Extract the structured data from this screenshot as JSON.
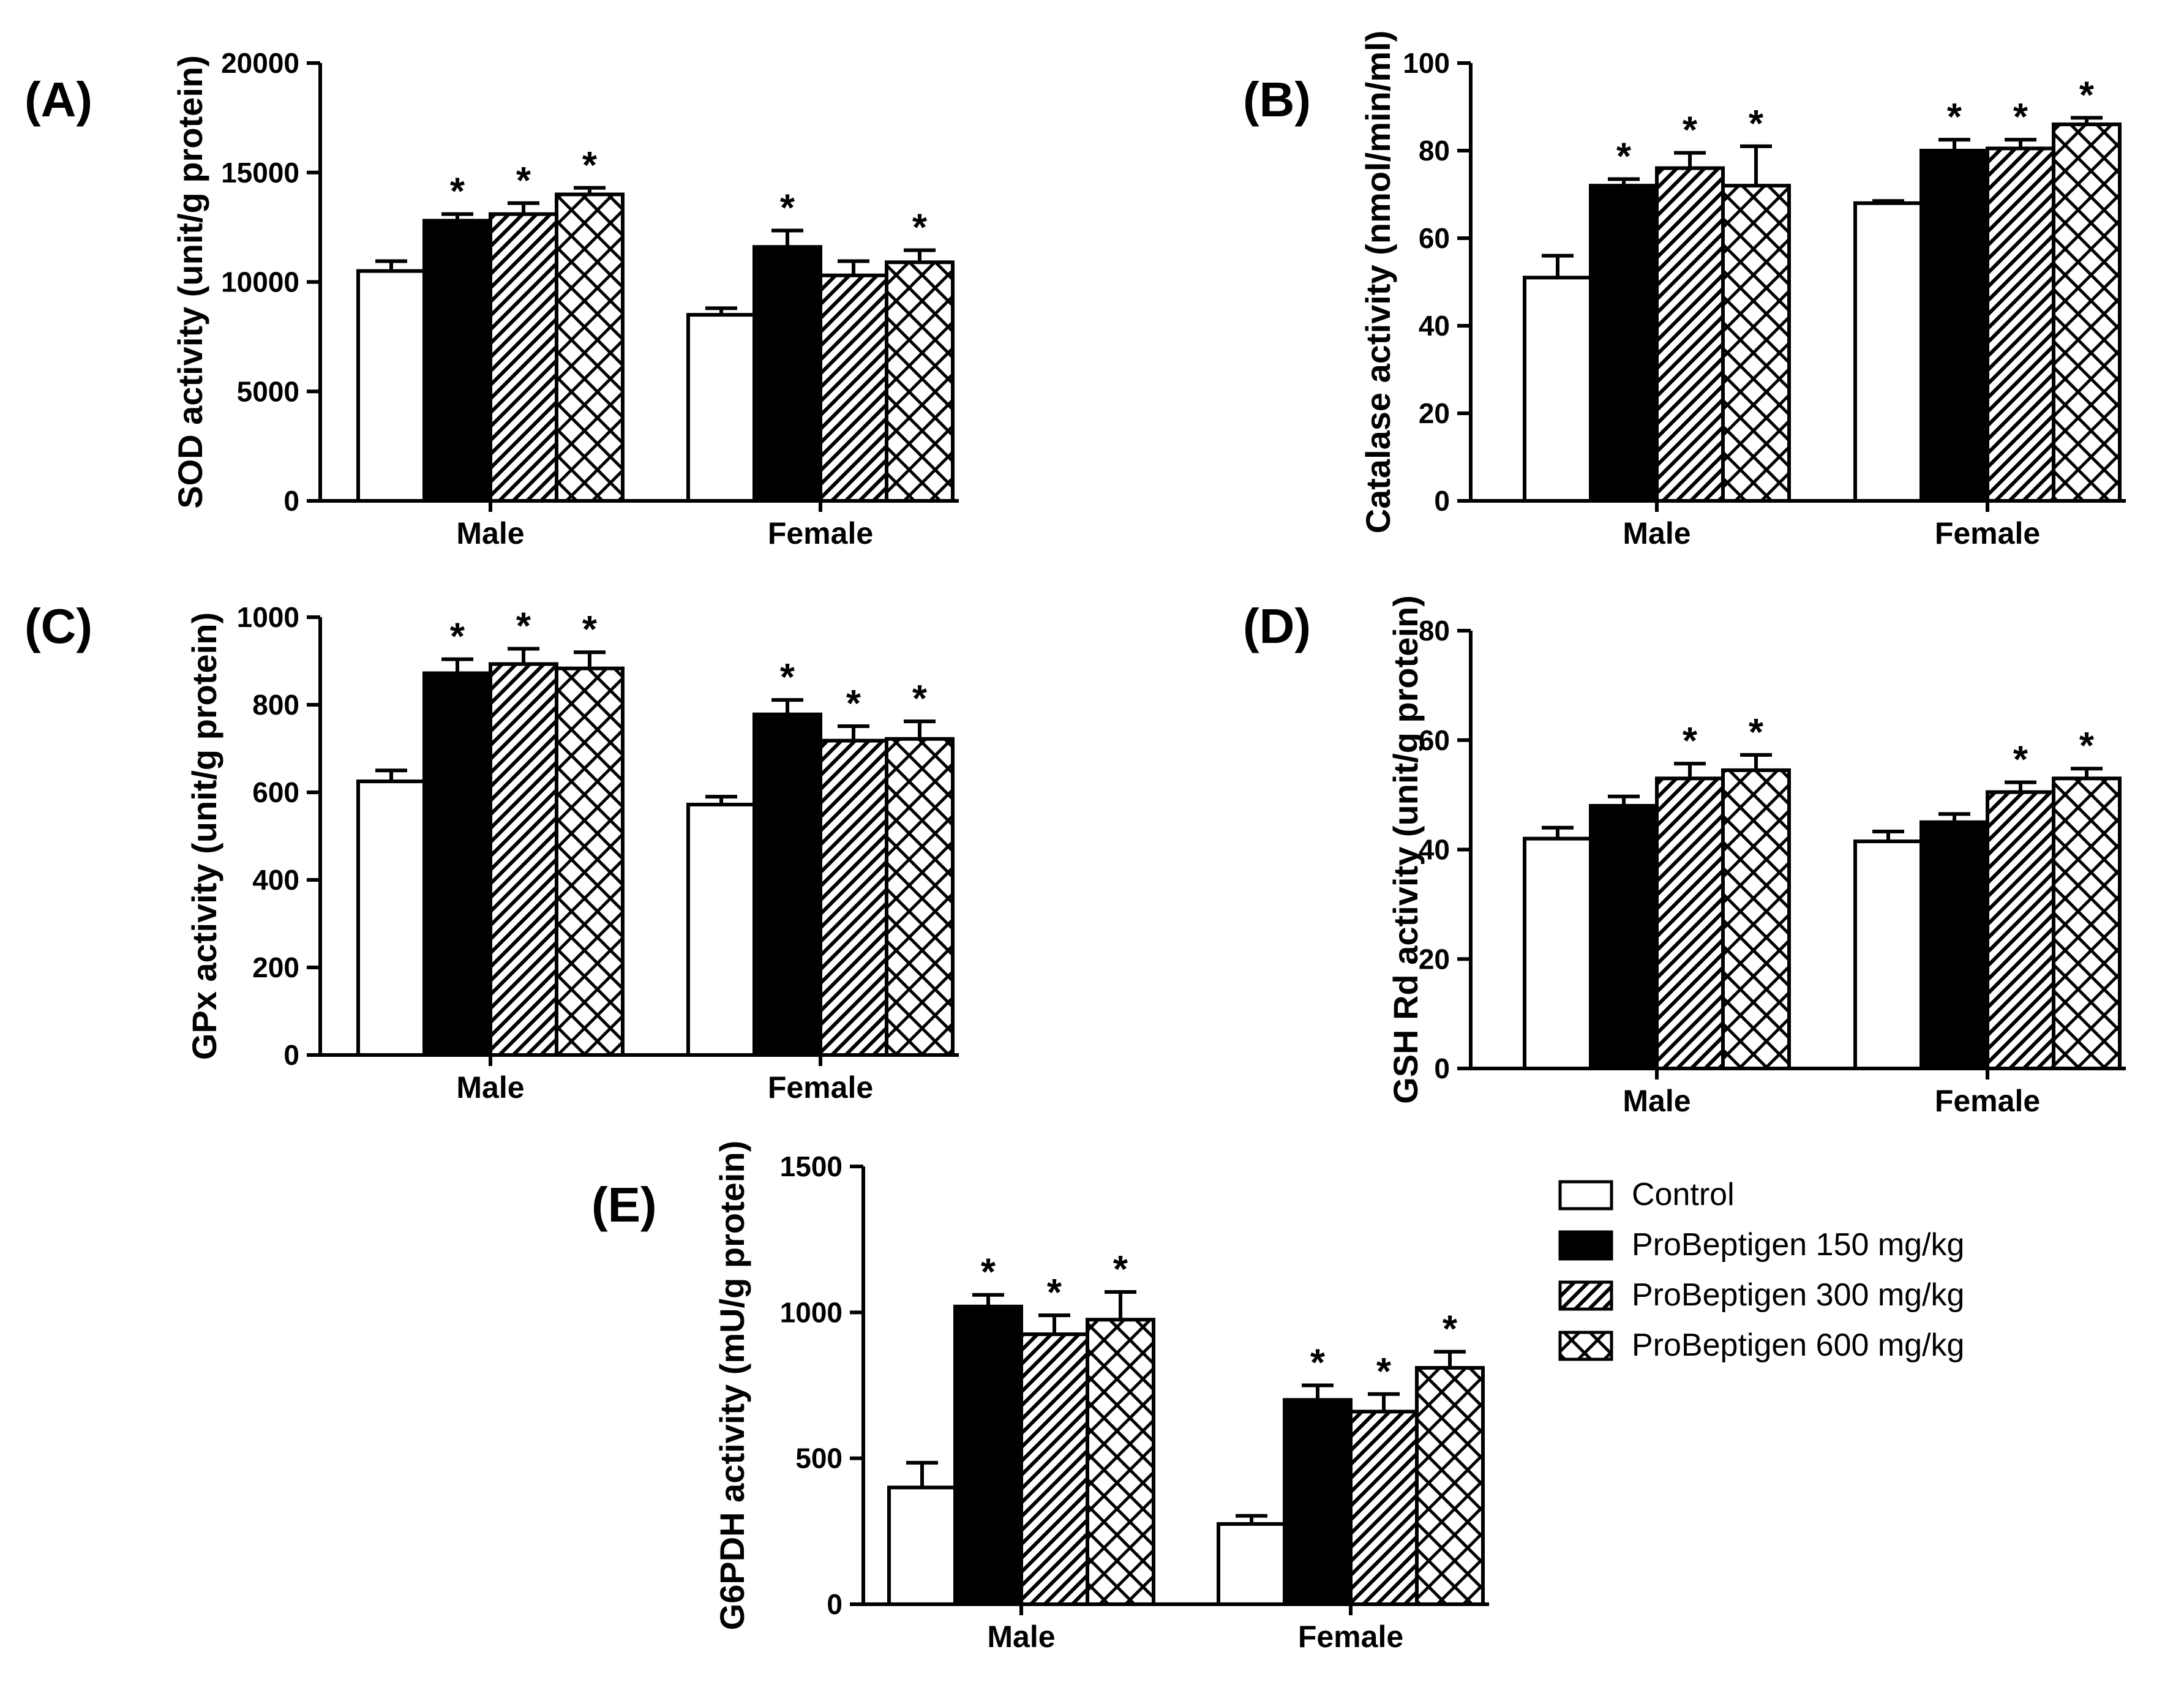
{
  "figure": {
    "legend": [
      {
        "name": "Control",
        "pattern": "white"
      },
      {
        "name": "ProBeptigen 150 mg/kg",
        "pattern": "black"
      },
      {
        "name": "ProBeptigen 300 mg/kg",
        "pattern": "diagonal"
      },
      {
        "name": "ProBeptigen 600 mg/kg",
        "pattern": "crosshatch"
      }
    ],
    "significance_marker": "*"
  },
  "chart_data": [
    {
      "panel": "(A)",
      "type": "bar",
      "ylabel": "SOD activity (unit/g protein)",
      "categories": [
        "Male",
        "Female"
      ],
      "ylim": [
        0,
        20000
      ],
      "yticks": [
        0,
        5000,
        10000,
        15000,
        20000
      ],
      "series": [
        {
          "name": "Control",
          "values": [
            10500,
            8500
          ],
          "errors": [
            450,
            300
          ],
          "significant": [
            false,
            false
          ]
        },
        {
          "name": "ProBeptigen 150 mg/kg",
          "values": [
            12800,
            11600
          ],
          "errors": [
            300,
            750
          ],
          "significant": [
            true,
            true
          ]
        },
        {
          "name": "ProBeptigen 300 mg/kg",
          "values": [
            13100,
            10300
          ],
          "errors": [
            500,
            650
          ],
          "significant": [
            true,
            false
          ]
        },
        {
          "name": "ProBeptigen 600 mg/kg",
          "values": [
            14000,
            10900
          ],
          "errors": [
            300,
            550
          ],
          "significant": [
            true,
            true
          ]
        }
      ]
    },
    {
      "panel": "(B)",
      "type": "bar",
      "ylabel": "Catalase activity (nmol/min/ml)",
      "categories": [
        "Male",
        "Female"
      ],
      "ylim": [
        0,
        100
      ],
      "yticks": [
        0,
        20,
        40,
        60,
        80,
        100
      ],
      "series": [
        {
          "name": "Control",
          "values": [
            51,
            68
          ],
          "errors": [
            5,
            0.5
          ],
          "significant": [
            false,
            false
          ]
        },
        {
          "name": "ProBeptigen 150 mg/kg",
          "values": [
            72,
            80
          ],
          "errors": [
            1.5,
            2.5
          ],
          "significant": [
            true,
            true
          ]
        },
        {
          "name": "ProBeptigen 300 mg/kg",
          "values": [
            76,
            80.5
          ],
          "errors": [
            3.5,
            2
          ],
          "significant": [
            true,
            true
          ]
        },
        {
          "name": "ProBeptigen 600 mg/kg",
          "values": [
            72,
            86
          ],
          "errors": [
            9,
            1.5
          ],
          "significant": [
            true,
            true
          ]
        }
      ]
    },
    {
      "panel": "(C)",
      "type": "bar",
      "ylabel": "GPx activity (unit/g protein)",
      "categories": [
        "Male",
        "Female"
      ],
      "ylim": [
        0,
        1000
      ],
      "yticks": [
        0,
        200,
        400,
        600,
        800,
        1000
      ],
      "series": [
        {
          "name": "Control",
          "values": [
            625,
            572
          ],
          "errors": [
            25,
            18
          ],
          "significant": [
            false,
            false
          ]
        },
        {
          "name": "ProBeptigen 150 mg/kg",
          "values": [
            872,
            778
          ],
          "errors": [
            32,
            33
          ],
          "significant": [
            true,
            true
          ]
        },
        {
          "name": "ProBeptigen 300 mg/kg",
          "values": [
            893,
            718
          ],
          "errors": [
            35,
            33
          ],
          "significant": [
            true,
            true
          ]
        },
        {
          "name": "ProBeptigen 600 mg/kg",
          "values": [
            883,
            722
          ],
          "errors": [
            37,
            40
          ],
          "significant": [
            true,
            true
          ]
        }
      ]
    },
    {
      "panel": "(D)",
      "type": "bar",
      "ylabel": "GSH Rd activity (unit/g protein)",
      "categories": [
        "Male",
        "Female"
      ],
      "ylim": [
        0,
        80
      ],
      "yticks": [
        0,
        20,
        40,
        60,
        80
      ],
      "series": [
        {
          "name": "Control",
          "values": [
            42,
            41.5
          ],
          "errors": [
            2,
            1.8
          ],
          "significant": [
            false,
            false
          ]
        },
        {
          "name": "ProBeptigen 150 mg/kg",
          "values": [
            48,
            45
          ],
          "errors": [
            1.7,
            1.5
          ],
          "significant": [
            false,
            false
          ]
        },
        {
          "name": "ProBeptigen 300 mg/kg",
          "values": [
            53,
            50.5
          ],
          "errors": [
            2.7,
            1.8
          ],
          "significant": [
            true,
            true
          ]
        },
        {
          "name": "ProBeptigen 600 mg/kg",
          "values": [
            54.5,
            53
          ],
          "errors": [
            2.8,
            1.8
          ],
          "significant": [
            true,
            true
          ]
        }
      ]
    },
    {
      "panel": "(E)",
      "type": "bar",
      "ylabel": "G6PDH activity (mU/g protein)",
      "categories": [
        "Male",
        "Female"
      ],
      "ylim": [
        0,
        1500
      ],
      "yticks": [
        0,
        500,
        1000,
        1500
      ],
      "series": [
        {
          "name": "Control",
          "values": [
            400,
            275
          ],
          "errors": [
            85,
            28
          ],
          "significant": [
            false,
            false
          ]
        },
        {
          "name": "ProBeptigen 150 mg/kg",
          "values": [
            1020,
            700
          ],
          "errors": [
            40,
            50
          ],
          "significant": [
            true,
            true
          ]
        },
        {
          "name": "ProBeptigen 300 mg/kg",
          "values": [
            925,
            660
          ],
          "errors": [
            65,
            60
          ],
          "significant": [
            true,
            true
          ]
        },
        {
          "name": "ProBeptigen 600 mg/kg",
          "values": [
            975,
            810
          ],
          "errors": [
            95,
            55
          ],
          "significant": [
            true,
            true
          ]
        }
      ]
    }
  ]
}
